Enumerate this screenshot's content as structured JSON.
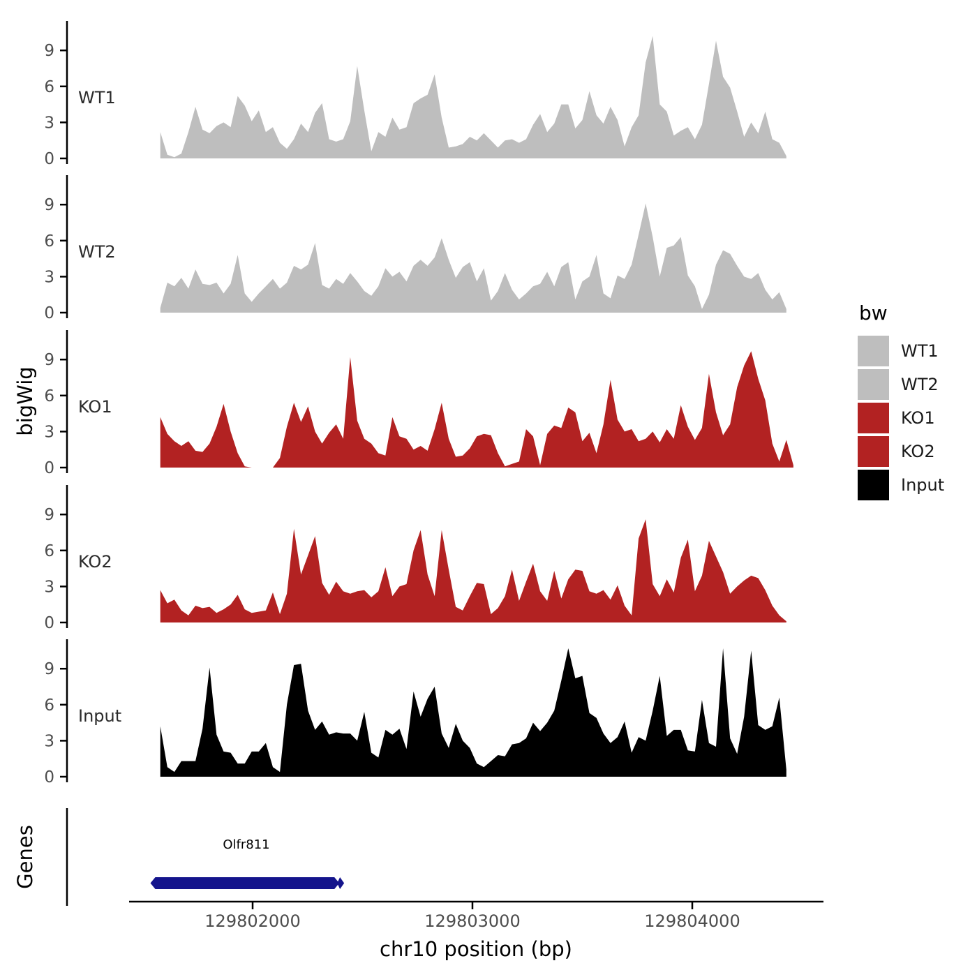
{
  "figure": {
    "background": "#FFFFFF",
    "y_axis_label": "bigWig",
    "genes_axis_label": "Genes",
    "x_axis": {
      "title": "chr10 position (bp)",
      "ticks": [
        129802000,
        129803000,
        129804000
      ],
      "tick_labels": [
        "129802000",
        "129803000",
        "129804000"
      ],
      "range": [
        129801430,
        129804580
      ]
    },
    "legend": {
      "title": "bw",
      "entries": [
        {
          "label": "WT1",
          "color": "#BEBEBE"
        },
        {
          "label": "WT2",
          "color": "#BEBEBE"
        },
        {
          "label": "KO1",
          "color": "#B22222"
        },
        {
          "label": "KO2",
          "color": "#B22222"
        },
        {
          "label": "Input",
          "color": "#000000"
        }
      ]
    }
  },
  "chart_data": {
    "type": "area",
    "title": "",
    "xlabel": "chr10 position (bp)",
    "ylabel": "bigWig",
    "chromosome": "chr10",
    "x_start": 129801580,
    "x_step": 32,
    "n_points": 90,
    "y_ticks": [
      0,
      3,
      6,
      9
    ],
    "ylim": [
      0,
      11.5
    ],
    "grid": false,
    "legend_position": "right",
    "panels": [
      {
        "name": "WT1",
        "color": "#BEBEBE",
        "values": [
          2.2,
          0.3,
          0.1,
          0.4,
          2.2,
          4.3,
          2.4,
          2.1,
          2.7,
          3.0,
          2.6,
          5.2,
          4.4,
          3.1,
          4.0,
          2.2,
          2.6,
          1.3,
          0.8,
          1.6,
          2.9,
          2.2,
          3.8,
          4.6,
          1.6,
          1.4,
          1.6,
          3.1,
          7.7,
          4.0,
          0.6,
          2.2,
          1.8,
          3.4,
          2.4,
          2.6,
          4.6,
          5.0,
          5.3,
          7.0,
          3.4,
          0.9,
          1.0,
          1.2,
          1.8,
          1.5,
          2.1,
          1.5,
          0.9,
          1.5,
          1.6,
          1.3,
          1.6,
          2.8,
          3.7,
          2.2,
          2.9,
          4.5,
          4.5,
          2.5,
          3.2,
          5.6,
          3.6,
          2.9,
          4.3,
          3.2,
          1.0,
          2.6,
          3.6,
          8.0,
          10.2,
          4.5,
          3.9,
          1.9,
          2.3,
          2.6,
          1.6,
          2.8,
          6.2,
          9.8,
          6.8,
          5.9,
          3.9,
          1.8,
          3.0,
          2.1,
          3.9,
          1.6,
          1.3,
          0.2
        ]
      },
      {
        "name": "WT2",
        "color": "#BEBEBE",
        "values": [
          0.4,
          2.5,
          2.2,
          2.9,
          2.0,
          3.6,
          2.4,
          2.3,
          2.5,
          1.6,
          2.4,
          4.8,
          1.6,
          0.9,
          1.6,
          2.2,
          2.8,
          2.0,
          2.5,
          3.9,
          3.6,
          4.0,
          5.8,
          2.3,
          2.0,
          2.8,
          2.4,
          3.3,
          2.6,
          1.8,
          1.4,
          2.2,
          3.7,
          3.0,
          3.4,
          2.6,
          3.9,
          4.4,
          3.9,
          4.6,
          6.2,
          4.4,
          2.9,
          3.8,
          4.2,
          2.6,
          3.7,
          1.0,
          1.8,
          3.3,
          1.9,
          1.1,
          1.6,
          2.2,
          2.4,
          3.4,
          2.2,
          3.8,
          4.2,
          1.1,
          2.6,
          3.0,
          4.8,
          1.6,
          1.2,
          3.1,
          2.8,
          4.0,
          6.5,
          9.1,
          6.3,
          3.0,
          5.4,
          5.6,
          6.3,
          3.1,
          2.2,
          0.3,
          1.5,
          4.0,
          5.2,
          4.9,
          3.9,
          3.0,
          2.8,
          3.3,
          1.9,
          1.1,
          1.7,
          0.3
        ]
      },
      {
        "name": "KO1",
        "color": "#B22222",
        "values": [
          4.2,
          2.8,
          2.2,
          1.8,
          2.2,
          1.4,
          1.3,
          2.0,
          3.4,
          5.3,
          3.0,
          1.2,
          0.1,
          0,
          0,
          0,
          0,
          0.8,
          3.4,
          5.4,
          3.8,
          5.1,
          3.0,
          2.0,
          2.9,
          3.6,
          2.4,
          9.2,
          3.9,
          2.4,
          2.0,
          1.2,
          1.0,
          4.2,
          2.6,
          2.4,
          1.5,
          1.8,
          1.4,
          3.2,
          5.4,
          2.4,
          0.9,
          1.0,
          1.6,
          2.6,
          2.8,
          2.7,
          1.2,
          0.1,
          0.3,
          0.5,
          3.2,
          2.6,
          0.2,
          2.8,
          3.5,
          3.3,
          5.0,
          4.6,
          2.2,
          2.9,
          1.2,
          3.6,
          7.3,
          4.0,
          3.0,
          3.2,
          2.2,
          2.4,
          3.0,
          2.1,
          3.2,
          2.4,
          5.2,
          3.4,
          2.3,
          3.3,
          7.8,
          4.6,
          2.7,
          3.6,
          6.7,
          8.5,
          9.7,
          7.4,
          5.6,
          2.0,
          0.5,
          2.3,
          0.2
        ]
      },
      {
        "name": "KO2",
        "color": "#B22222",
        "values": [
          2.7,
          1.6,
          1.9,
          1.0,
          0.6,
          1.4,
          1.2,
          1.3,
          0.8,
          1.1,
          1.5,
          2.3,
          1.1,
          0.8,
          0.9,
          1.0,
          2.5,
          0.7,
          2.4,
          7.8,
          4.0,
          5.6,
          7.2,
          3.3,
          2.3,
          3.4,
          2.6,
          2.4,
          2.6,
          2.7,
          2.1,
          2.6,
          4.6,
          2.2,
          3.0,
          3.2,
          6.0,
          7.7,
          4.0,
          2.2,
          7.7,
          4.4,
          1.3,
          1.0,
          2.2,
          3.3,
          3.2,
          0.7,
          1.2,
          2.2,
          4.4,
          1.8,
          3.4,
          4.9,
          2.6,
          1.8,
          4.3,
          2.0,
          3.6,
          4.4,
          4.3,
          2.6,
          2.4,
          2.7,
          1.9,
          3.1,
          1.4,
          0.6,
          7.0,
          8.6,
          3.2,
          2.2,
          3.6,
          2.5,
          5.4,
          6.9,
          2.6,
          3.9,
          6.8,
          5.5,
          4.2,
          2.4,
          3.0,
          3.5,
          3.9,
          3.7,
          2.7,
          1.4,
          0.6,
          0.1
        ]
      },
      {
        "name": "Input",
        "color": "#000000",
        "values": [
          4.2,
          0.8,
          0.4,
          1.3,
          1.3,
          1.3,
          4.0,
          9.1,
          3.5,
          2.1,
          2.0,
          1.1,
          1.1,
          2.1,
          2.1,
          2.8,
          0.8,
          0.4,
          6.0,
          9.3,
          9.4,
          5.5,
          3.9,
          4.6,
          3.5,
          3.7,
          3.6,
          3.6,
          3.0,
          5.4,
          2.0,
          1.6,
          3.9,
          3.5,
          4.0,
          2.3,
          7.1,
          5.0,
          6.5,
          7.5,
          3.6,
          2.4,
          4.4,
          3.0,
          2.4,
          1.1,
          0.8,
          1.3,
          1.8,
          1.7,
          2.7,
          2.8,
          3.2,
          4.5,
          3.8,
          4.5,
          5.5,
          8.0,
          10.7,
          8.2,
          8.4,
          5.3,
          4.9,
          3.6,
          2.8,
          3.3,
          4.6,
          2.0,
          3.3,
          3.0,
          5.5,
          8.4,
          3.4,
          3.9,
          3.9,
          2.2,
          2.1,
          6.4,
          2.8,
          2.5,
          10.7,
          3.2,
          1.9,
          5.0,
          10.5,
          4.3,
          3.9,
          4.2,
          6.6,
          0.6
        ]
      }
    ],
    "genes_track": {
      "label": "Genes",
      "gene": {
        "name": "Olfr811",
        "start": 129801535,
        "end": 129802410,
        "color": "#14148C"
      }
    }
  }
}
